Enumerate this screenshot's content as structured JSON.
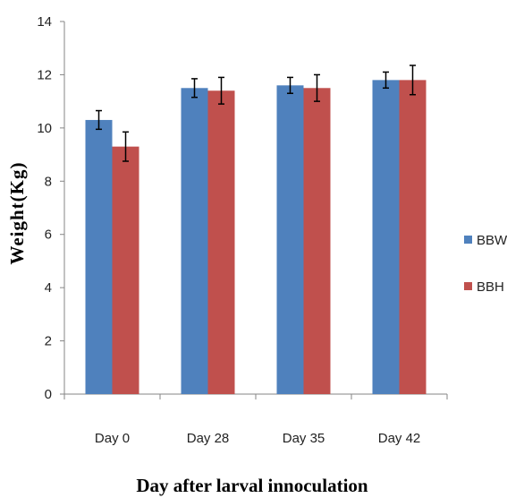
{
  "chart_data": {
    "type": "bar",
    "title": "",
    "xlabel": "Day after larval innoculation",
    "ylabel": "Weight(Kg)",
    "ylim": [
      0,
      14
    ],
    "yticks": [
      "0",
      "2",
      "4",
      "6",
      "8",
      "10",
      "12",
      "14"
    ],
    "categories": [
      "Day 0",
      "Day 28",
      "Day 35",
      "Day 42"
    ],
    "series": [
      {
        "name": "BBW",
        "color": "#4f81bd",
        "values": [
          10.3,
          11.5,
          11.6,
          11.8
        ],
        "errors": [
          0.35,
          0.35,
          0.3,
          0.3
        ]
      },
      {
        "name": "BBH",
        "color": "#c0504d",
        "values": [
          9.3,
          11.4,
          11.5,
          11.8
        ],
        "errors": [
          0.55,
          0.5,
          0.5,
          0.55
        ]
      }
    ],
    "legend_position": "right",
    "grid": false
  }
}
